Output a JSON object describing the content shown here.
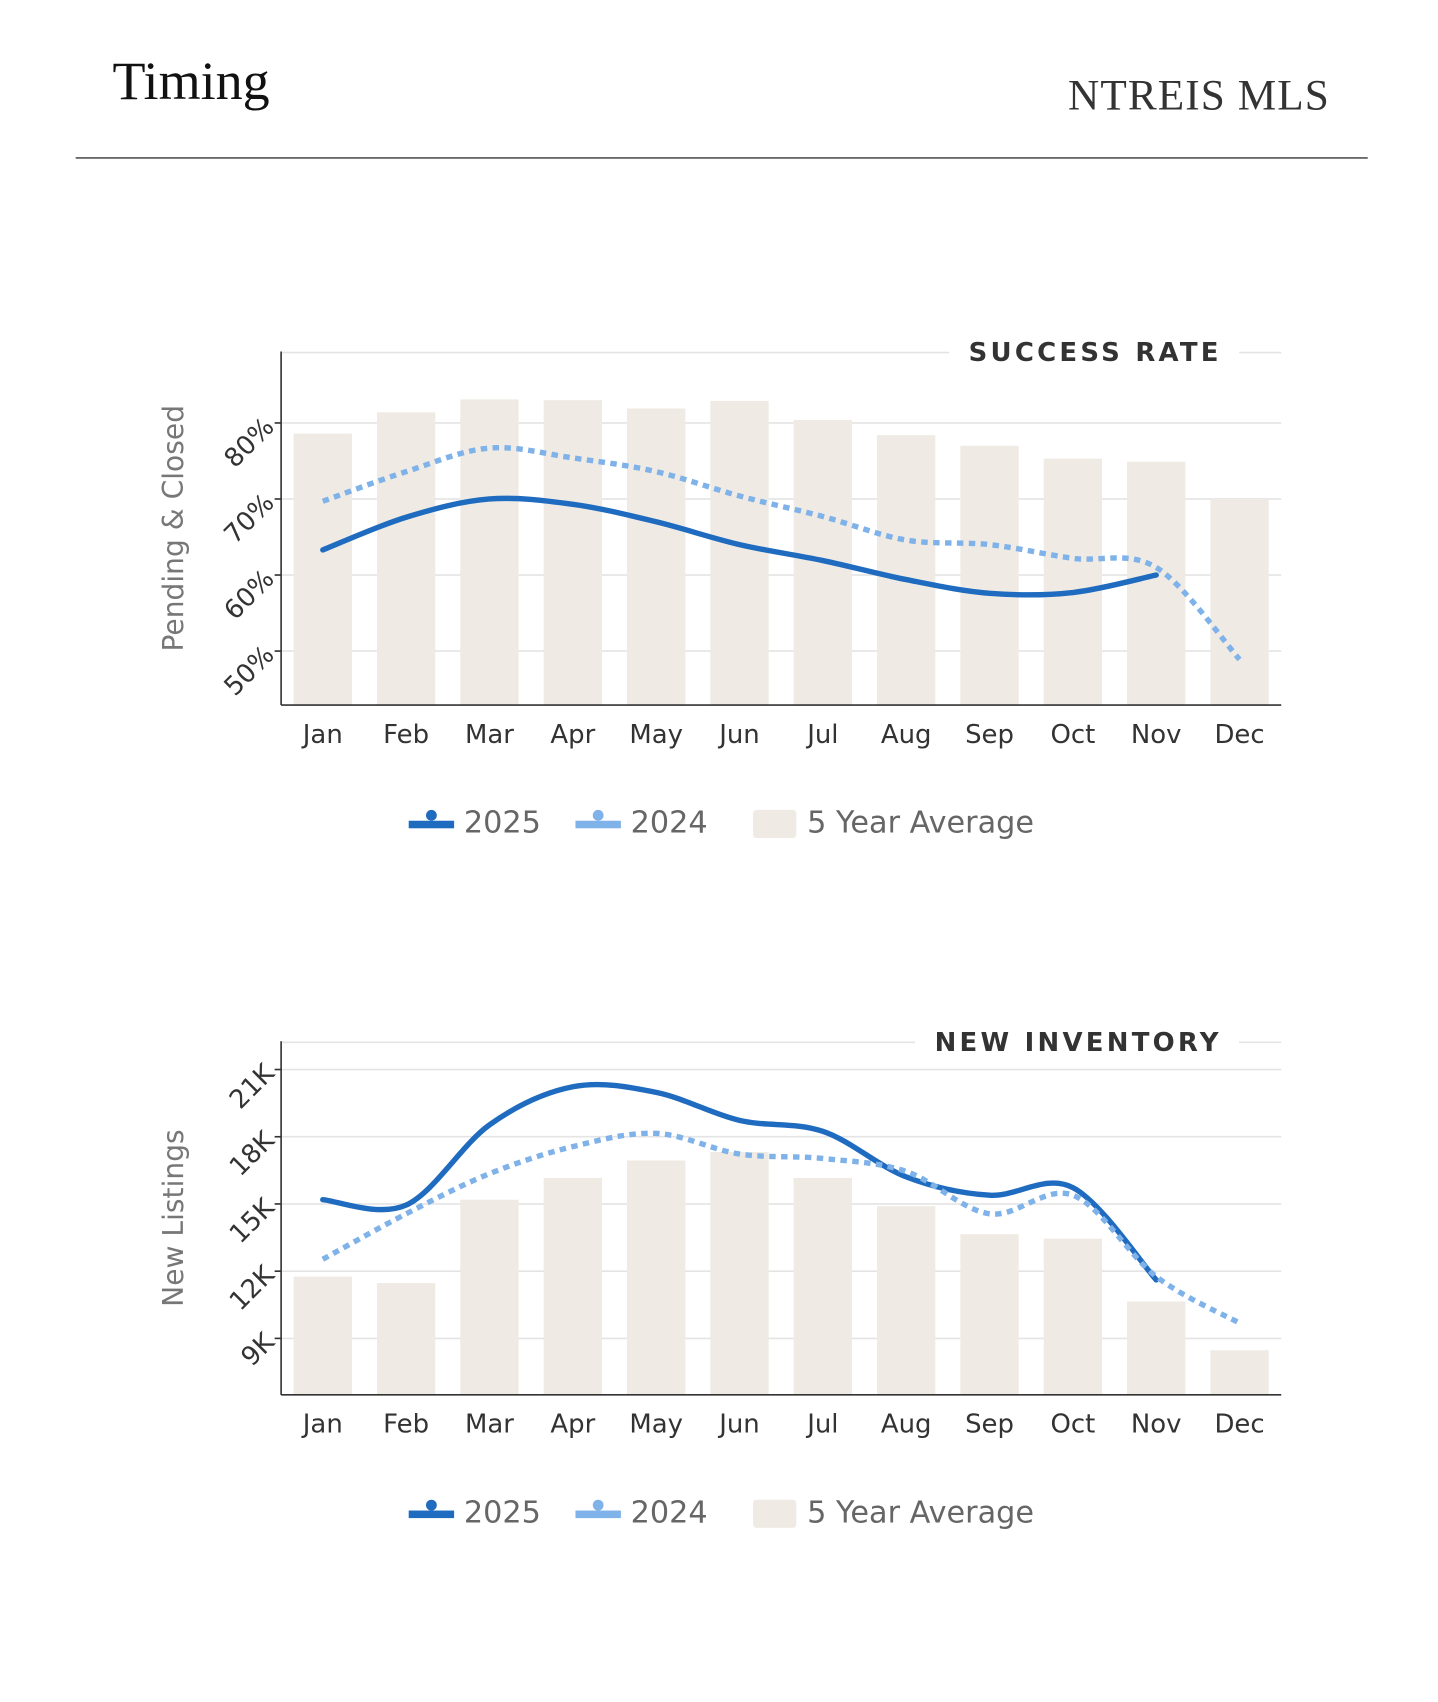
{
  "header": {
    "title": "Timing",
    "source": "NTREIS MLS"
  },
  "chart_data": [
    {
      "type": "bar_line",
      "title": "SUCCESS RATE",
      "y_label": "Pending & Closed",
      "categories": [
        "Jan",
        "Feb",
        "Mar",
        "Apr",
        "May",
        "Jun",
        "Jul",
        "Aug",
        "Sep",
        "Oct",
        "Nov",
        "Dec"
      ],
      "ylim": [
        42.9,
        89.4
      ],
      "yticks": [
        {
          "value": 50,
          "label": "50%"
        },
        {
          "value": 60,
          "label": "60%"
        },
        {
          "value": 70,
          "label": "70%"
        },
        {
          "value": 80,
          "label": "80%"
        }
      ],
      "grid": true,
      "series": [
        {
          "name": "5 Year Average",
          "kind": "bar",
          "color": "#efebe4",
          "values": [
            78.6,
            81.4,
            83.1,
            83.0,
            81.9,
            82.9,
            80.4,
            78.4,
            77.0,
            75.3,
            74.9,
            70.0
          ]
        },
        {
          "name": "2025",
          "kind": "line",
          "style": "solid",
          "color": "#1f6bbf",
          "values": [
            63.3,
            67.6,
            70.0,
            69.3,
            67.0,
            64.0,
            61.9,
            59.4,
            57.6,
            57.7,
            60.0,
            null
          ]
        },
        {
          "name": "2024",
          "kind": "line",
          "style": "dotted",
          "color": "#7fb2e8",
          "values": [
            69.7,
            73.6,
            76.7,
            75.4,
            73.6,
            70.4,
            67.7,
            64.6,
            64.0,
            62.2,
            61.0,
            48.9
          ]
        }
      ]
    },
    {
      "type": "bar_line",
      "title": "NEW INVENTORY",
      "y_label": "New Listings",
      "categories": [
        "Jan",
        "Feb",
        "Mar",
        "Apr",
        "May",
        "Jun",
        "Jul",
        "Aug",
        "Sep",
        "Oct",
        "Nov",
        "Dec"
      ],
      "ylim": [
        6480,
        22260
      ],
      "yticks": [
        {
          "value": 9000,
          "label": "9K"
        },
        {
          "value": 12000,
          "label": "12K"
        },
        {
          "value": 15000,
          "label": "15K"
        },
        {
          "value": 18000,
          "label": "18K"
        },
        {
          "value": 21000,
          "label": "21K"
        }
      ],
      "grid": true,
      "series": [
        {
          "name": "5 Year Average",
          "kind": "bar",
          "color": "#efebe4",
          "values": [
            11760,
            11470,
            15190,
            16160,
            16940,
            17320,
            16160,
            14900,
            13650,
            13450,
            10650,
            8470
          ]
        },
        {
          "name": "2025",
          "kind": "line",
          "style": "solid",
          "color": "#1f6bbf",
          "values": [
            15190,
            14950,
            18530,
            20230,
            19980,
            18730,
            18240,
            16210,
            15390,
            15730,
            11610,
            null
          ]
        },
        {
          "name": "2024",
          "kind": "line",
          "style": "dotted",
          "color": "#7fb2e8",
          "values": [
            12530,
            14560,
            16350,
            17560,
            18150,
            17230,
            17030,
            16450,
            14560,
            15390,
            11760,
            9680
          ]
        }
      ]
    }
  ]
}
